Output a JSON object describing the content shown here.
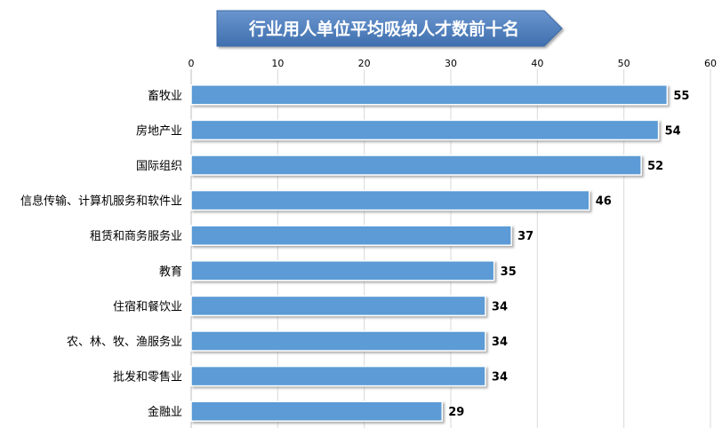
{
  "chart_data": {
    "type": "bar",
    "orientation": "horizontal",
    "title": "行业用人单位平均吸纳人才数前十名",
    "categories": [
      "畜牧业",
      "房地产业",
      "国际组织",
      "信息传输、计算机服务和软件业",
      "租赁和商务服务业",
      "教育",
      "住宿和餐饮业",
      "农、林、牧、渔服务业",
      "批发和零售业",
      "金融业"
    ],
    "values": [
      55,
      54,
      52,
      46,
      37,
      35,
      34,
      34,
      34,
      29
    ],
    "xlim": [
      0,
      60
    ],
    "xticks": [
      0,
      10,
      20,
      30,
      40,
      50,
      60
    ],
    "xaxis_position": "top",
    "grid": true,
    "data_labels": true,
    "colors": {
      "bar": "#5b9bd5",
      "bar_border": "#ffffff",
      "title_bg": "#4f81bd",
      "title_text": "#ffffff",
      "grid": "#d9d9d9",
      "text": "#000000"
    }
  }
}
